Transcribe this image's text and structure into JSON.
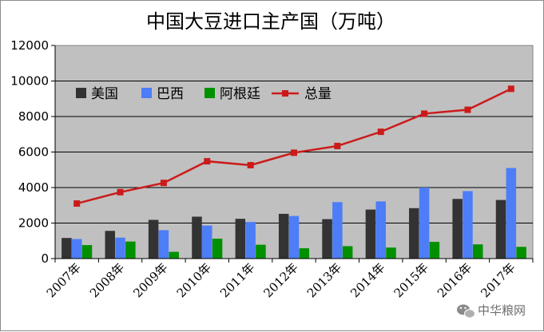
{
  "chart_data": {
    "type": "bar",
    "title": "中国大豆进口主产国（万吨）",
    "xlabel": "",
    "ylabel": "",
    "ylim": [
      0,
      12000
    ],
    "yticks": [
      0,
      2000,
      4000,
      6000,
      8000,
      10000,
      12000
    ],
    "grid": true,
    "legend_position": "top-left",
    "categories": [
      "2007年",
      "2008年",
      "2009年",
      "2010年",
      "2011年",
      "2012年",
      "2013年",
      "2014年",
      "2015年",
      "2016年",
      "2017年"
    ],
    "series": [
      {
        "name": "美国",
        "kind": "bar",
        "color": "#333333",
        "values": [
          1160,
          1560,
          2180,
          2360,
          2240,
          2520,
          2220,
          2760,
          2840,
          3360,
          3300
        ]
      },
      {
        "name": "巴西",
        "kind": "bar",
        "color": "#4d7df7",
        "values": [
          1100,
          1180,
          1600,
          1860,
          2060,
          2400,
          3180,
          3220,
          4000,
          3800,
          5100
        ]
      },
      {
        "name": "阿根廷",
        "kind": "bar",
        "color": "#009000",
        "values": [
          760,
          960,
          380,
          1120,
          780,
          580,
          700,
          620,
          940,
          800,
          660
        ]
      },
      {
        "name": "总量",
        "kind": "line",
        "color": "#cc1a1a",
        "values": [
          3100,
          3740,
          4260,
          5480,
          5260,
          5960,
          6340,
          7140,
          8160,
          8380,
          9560
        ]
      }
    ]
  },
  "watermark": {
    "text": "中华粮网",
    "icon": "wechat-icon"
  }
}
